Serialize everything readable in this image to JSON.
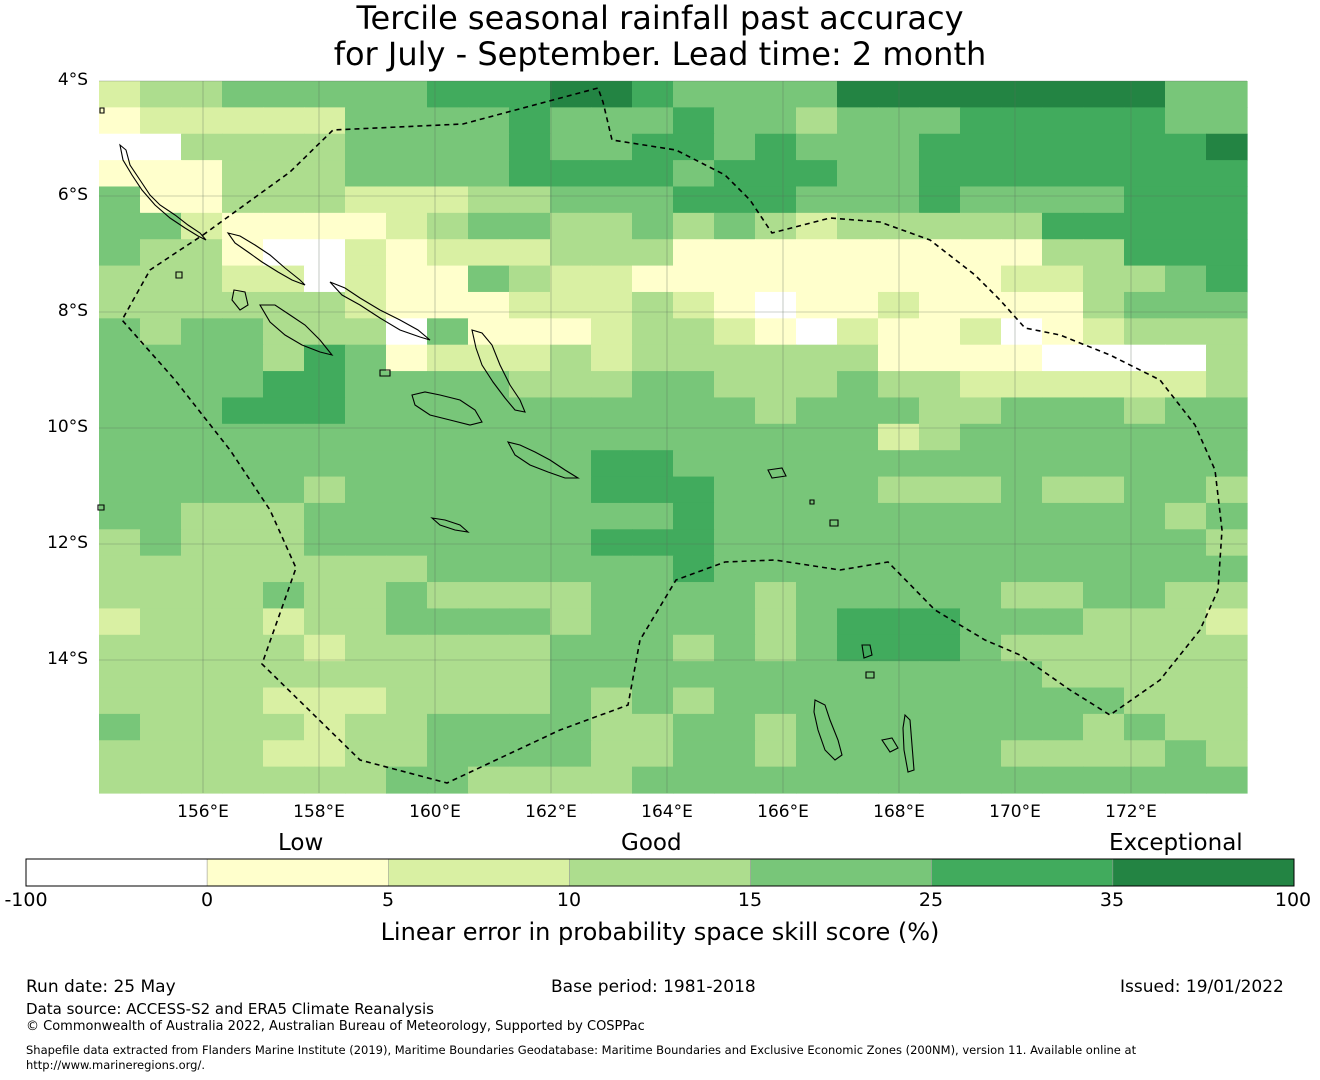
{
  "title": {
    "line1": "Tercile seasonal rainfall past accuracy",
    "line2": "for July - September. Lead time: 2 month"
  },
  "map": {
    "lat_ticks": [
      "4°S",
      "6°S",
      "8°S",
      "10°S",
      "12°S",
      "14°S"
    ],
    "lon_ticks": [
      "156°E",
      "158°E",
      "160°E",
      "162°E",
      "164°E",
      "166°E",
      "168°E",
      "170°E",
      "172°E"
    ],
    "grid": true,
    "cell_levels": [
      "2334444455566544446666666644",
      "1222224444544454434445555544",
      "0033334444544554544455555556",
      "1113334444555545554455555555",
      "4113332223344455544454444555",
      "4421111234433434323333355555",
      "4331002122233311111111133555",
      "3332202114322111111111223345",
      "3333332111222321011211113444",
      "4344333041112332102112012333",
      "4444354122232333333111100003",
      "4444554444333443334332222223",
      "4445554444444444344433444344",
      "4444444444444444444234444444",
      "4444444444445544444444444444",
      "4444434444445554444333433443",
      "4433344444444454444444444434",
      "3433344444445554444444444443",
      "3333333344444454444444444444",
      "3333433433334444344444334433",
      "2333233444434444345554443332",
      "3333323333344434345554333333",
      "3333333333344444444444433333",
      "3333222333343434444444444333",
      "4333323344443344344444443433",
      "3333223344443344344444333343",
      "3333333443333444444444444444"
    ]
  },
  "colorbar": {
    "categories": [
      "Low",
      "Good",
      "Exceptional"
    ],
    "ticks": [
      "-100",
      "0",
      "5",
      "10",
      "15",
      "25",
      "35",
      "100"
    ],
    "colors": [
      "#ffffff",
      "#ffffcc",
      "#d9f0a3",
      "#addd8e",
      "#78c679",
      "#41ab5d",
      "#238443"
    ],
    "title": "Linear error in probability space skill score (%)"
  },
  "footer": {
    "run_date": "Run date: 25 May",
    "base_period": "Base period: 1981-2018",
    "issued": "Issued: 19/01/2022",
    "data_source": "Data source: ACCESS-S2 and ERA5 Climate Reanalysis",
    "copyright": "© Commonwealth of Australia 2022, Australian Bureau of Meteorology, Supported by COSPPac",
    "shapefile_line1": "Shapefile data extracted from Flanders Marine Institute (2019), Maritime Boundaries Geodatabase: Maritime Boundaries and Exclusive Economic Zones (200NM), version 11. Available online at",
    "shapefile_line2": "http://www.marineregions.org/."
  }
}
